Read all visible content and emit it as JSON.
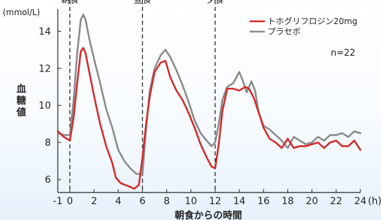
{
  "chart_data": {
    "type": "line",
    "title": "",
    "unit_label": "(mmol/L)",
    "x_unit": "(h)",
    "xlabel": "朝食からの時間",
    "ylabel": "血糖値",
    "xlim": [
      -1,
      24
    ],
    "ylim": [
      5.3,
      15.2
    ],
    "x_ticks": [
      -1,
      0,
      2,
      4,
      6,
      8,
      10,
      12,
      14,
      16,
      18,
      20,
      22,
      24
    ],
    "y_ticks": [
      6,
      8,
      10,
      12,
      14
    ],
    "annotation": "n=22",
    "meals": [
      {
        "label": "朝食",
        "x": 0
      },
      {
        "label": "昼食",
        "x": 6
      },
      {
        "label": "夕食",
        "x": 12
      }
    ],
    "legend_position": "top-right",
    "series": [
      {
        "name": "トホグリフロジン20mg",
        "color": "#d42a2a",
        "x": [
          -1,
          -0.5,
          0,
          0.3,
          0.6,
          0.9,
          1.1,
          1.3,
          1.6,
          2.0,
          2.5,
          3.0,
          3.5,
          3.8,
          4.2,
          4.6,
          5.0,
          5.3,
          5.7,
          6.0,
          6.3,
          6.6,
          7.0,
          7.5,
          7.9,
          8.3,
          8.8,
          9.3,
          9.8,
          10.3,
          10.8,
          11.3,
          11.7,
          12.0,
          12.3,
          12.6,
          13.0,
          13.5,
          14.0,
          14.5,
          14.8,
          15.2,
          15.6,
          16.0,
          16.5,
          17.0,
          17.5,
          18.0,
          18.5,
          19.0,
          19.5,
          20.0,
          20.5,
          21.0,
          21.5,
          22.0,
          22.5,
          23.0,
          23.5,
          24.0
        ],
        "y": [
          8.6,
          8.3,
          8.1,
          9.3,
          11.2,
          12.9,
          13.1,
          12.8,
          11.8,
          10.5,
          9.0,
          7.8,
          6.9,
          6.1,
          5.8,
          5.7,
          5.6,
          5.5,
          5.7,
          7.2,
          9.0,
          10.5,
          11.8,
          12.3,
          12.4,
          11.5,
          10.8,
          10.3,
          9.6,
          8.8,
          7.9,
          7.2,
          6.7,
          6.6,
          7.9,
          9.7,
          10.9,
          10.9,
          10.8,
          11.0,
          10.9,
          10.4,
          9.6,
          8.8,
          8.2,
          8.0,
          7.7,
          8.2,
          7.7,
          7.8,
          7.8,
          7.9,
          8.0,
          7.7,
          8.0,
          8.1,
          7.8,
          7.8,
          8.1,
          7.6
        ]
      },
      {
        "name": "プラセボ",
        "color": "#8a8a8a",
        "x": [
          -1,
          -0.5,
          0,
          0.3,
          0.6,
          0.9,
          1.1,
          1.3,
          1.6,
          2.0,
          2.5,
          3.0,
          3.5,
          4.0,
          4.5,
          5.0,
          5.5,
          6.0,
          6.3,
          6.6,
          7.0,
          7.5,
          7.9,
          8.3,
          8.8,
          9.3,
          9.8,
          10.3,
          10.8,
          11.3,
          11.7,
          12.0,
          12.3,
          12.6,
          13.0,
          13.5,
          14.0,
          14.3,
          14.6,
          15.0,
          15.3,
          15.6,
          16.0,
          16.5,
          17.0,
          17.5,
          18.0,
          18.5,
          19.0,
          19.5,
          20.0,
          20.5,
          21.0,
          21.5,
          22.0,
          22.5,
          23.0,
          23.5,
          24.0
        ],
        "y": [
          8.5,
          8.4,
          8.4,
          10.2,
          12.8,
          14.6,
          14.9,
          14.6,
          13.6,
          12.5,
          11.2,
          9.8,
          8.8,
          7.6,
          7.0,
          6.6,
          6.3,
          6.3,
          8.8,
          10.8,
          12.0,
          12.7,
          13.0,
          12.6,
          11.9,
          11.1,
          10.2,
          9.2,
          8.5,
          8.1,
          7.8,
          8.0,
          9.0,
          10.3,
          11.0,
          11.2,
          11.8,
          11.3,
          10.7,
          11.3,
          10.8,
          9.6,
          8.9,
          8.7,
          8.4,
          8.1,
          7.7,
          8.3,
          8.1,
          7.9,
          8.0,
          8.3,
          8.1,
          8.4,
          8.4,
          8.5,
          8.3,
          8.6,
          8.5
        ]
      }
    ]
  }
}
